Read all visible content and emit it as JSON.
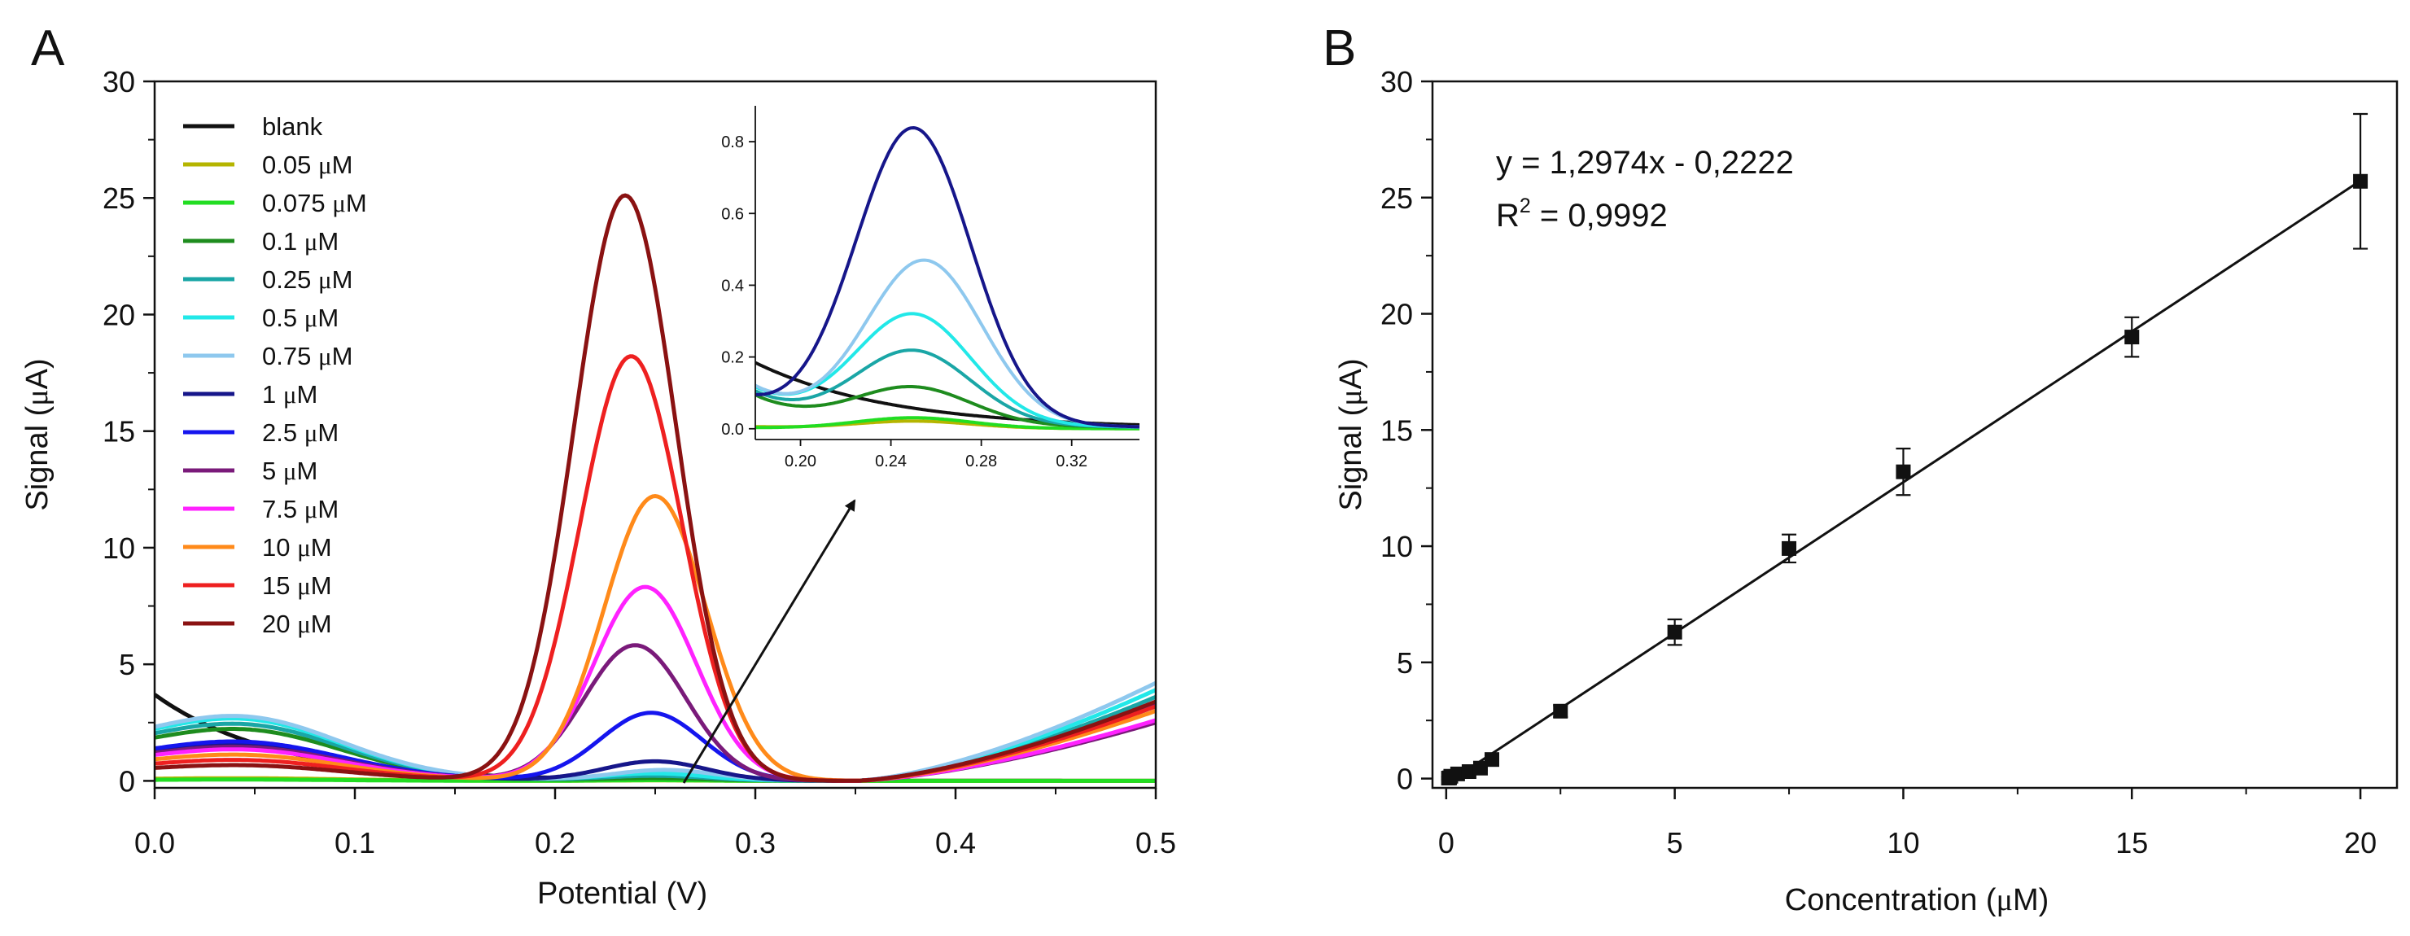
{
  "figure": {
    "panel_a_label": "A",
    "panel_b_label": "B"
  },
  "chart_data": [
    {
      "id": "A",
      "type": "line",
      "title": "",
      "xlabel": "Potential (V)",
      "ylabel": "Signal (μA)",
      "xlim": [
        0,
        0.5
      ],
      "ylim": [
        -0.3,
        30
      ],
      "xticks": [
        0.0,
        0.1,
        0.2,
        0.3,
        0.4,
        0.5
      ],
      "xtick_labels": [
        "0.0",
        "0.1",
        "0.2",
        "0.3",
        "0.4",
        "0.5"
      ],
      "yticks": [
        0,
        5,
        10,
        15,
        20,
        25,
        30
      ],
      "ytick_labels": [
        "0",
        "5",
        "10",
        "15",
        "20",
        "25",
        "30"
      ],
      "legend_position": "top-left",
      "series": [
        {
          "name": "blank",
          "unit": "",
          "color": "#111111",
          "peak_potential": 0.25,
          "peak_height": 0.0,
          "left_value": 3.7,
          "left_decay": 0.06,
          "right_rise": 0.0
        },
        {
          "name": "0.05",
          "unit": "μM",
          "color": "#b5b500",
          "peak_potential": 0.25,
          "peak_height": 0.02,
          "left_value": 0.1,
          "left_decay": 0.08,
          "right_rise": 0.0
        },
        {
          "name": "0.075",
          "unit": "μM",
          "color": "#22dd22",
          "peak_potential": 0.25,
          "peak_height": 0.03,
          "left_value": 0.05,
          "left_decay": 0.08,
          "right_rise": 0.0
        },
        {
          "name": "0.1",
          "unit": "μM",
          "color": "#1e8c1e",
          "peak_potential": 0.25,
          "peak_height": 0.1,
          "left_value": 2.0,
          "left_decay": 0.07,
          "right_rise": 3.3
        },
        {
          "name": "0.25",
          "unit": "μM",
          "color": "#1aa6a6",
          "peak_potential": 0.25,
          "peak_height": 0.2,
          "left_value": 2.2,
          "left_decay": 0.07,
          "right_rise": 3.6
        },
        {
          "name": "0.5",
          "unit": "μM",
          "color": "#22e8e8",
          "peak_potential": 0.25,
          "peak_height": 0.3,
          "left_value": 2.4,
          "left_decay": 0.07,
          "right_rise": 3.9
        },
        {
          "name": "0.75",
          "unit": "μM",
          "color": "#8ec8ee",
          "peak_potential": 0.255,
          "peak_height": 0.45,
          "left_value": 2.5,
          "left_decay": 0.07,
          "right_rise": 4.2
        },
        {
          "name": "1",
          "unit": "μM",
          "color": "#16168a",
          "peak_potential": 0.25,
          "peak_height": 0.82,
          "left_value": 1.4,
          "left_decay": 0.08,
          "right_rise": 3.2
        },
        {
          "name": "2.5",
          "unit": "μM",
          "color": "#1515ee",
          "peak_potential": 0.248,
          "peak_height": 2.9,
          "left_value": 1.5,
          "left_decay": 0.08,
          "right_rise": 3.3
        },
        {
          "name": "5",
          "unit": "μM",
          "color": "#7a1a7a",
          "peak_potential": 0.24,
          "peak_height": 5.8,
          "left_value": 1.3,
          "left_decay": 0.08,
          "right_rise": 2.5
        },
        {
          "name": "7.5",
          "unit": "μM",
          "color": "#ff22ff",
          "peak_potential": 0.245,
          "peak_height": 8.3,
          "left_value": 1.2,
          "left_decay": 0.08,
          "right_rise": 2.6
        },
        {
          "name": "10",
          "unit": "μM",
          "color": "#ff8a1a",
          "peak_potential": 0.25,
          "peak_height": 12.2,
          "left_value": 1.0,
          "left_decay": 0.08,
          "right_rise": 3.0
        },
        {
          "name": "15",
          "unit": "μM",
          "color": "#ee2020",
          "peak_potential": 0.238,
          "peak_height": 18.2,
          "left_value": 0.8,
          "left_decay": 0.08,
          "right_rise": 3.2
        },
        {
          "name": "20",
          "unit": "μM",
          "color": "#8a1212",
          "peak_potential": 0.235,
          "peak_height": 25.1,
          "left_value": 0.6,
          "left_decay": 0.08,
          "right_rise": 3.4
        }
      ],
      "inset": {
        "xlim": [
          0.18,
          0.35
        ],
        "ylim": [
          -0.03,
          0.9
        ],
        "xticks": [
          0.2,
          0.24,
          0.28,
          0.32
        ],
        "xtick_labels": [
          "0.20",
          "0.24",
          "0.28",
          "0.32"
        ],
        "yticks": [
          0.0,
          0.2,
          0.4,
          0.6,
          0.8
        ],
        "ytick_labels": [
          "0.0",
          "0.2",
          "0.4",
          "0.6",
          "0.8"
        ],
        "series_shown": [
          "blank",
          "0.05",
          "0.075",
          "0.1",
          "0.25",
          "0.5",
          "0.75",
          "1"
        ]
      }
    },
    {
      "id": "B",
      "type": "scatter",
      "title": "",
      "xlabel": "Concentration (μM)",
      "ylabel": "Signal (μA)",
      "xlim": [
        -0.3,
        20.8
      ],
      "ylim": [
        -0.4,
        30
      ],
      "xticks": [
        0,
        5,
        10,
        15,
        20
      ],
      "xtick_labels": [
        "0",
        "5",
        "10",
        "15",
        "20"
      ],
      "yticks": [
        0,
        5,
        10,
        15,
        20,
        25,
        30
      ],
      "ytick_labels": [
        "0",
        "5",
        "10",
        "15",
        "20",
        "25",
        "30"
      ],
      "points": [
        {
          "x": 0.05,
          "y": 0.02,
          "err": 0.05
        },
        {
          "x": 0.075,
          "y": 0.03,
          "err": 0.05
        },
        {
          "x": 0.1,
          "y": 0.1,
          "err": 0.05
        },
        {
          "x": 0.25,
          "y": 0.2,
          "err": 0.05
        },
        {
          "x": 0.5,
          "y": 0.3,
          "err": 0.08
        },
        {
          "x": 0.75,
          "y": 0.45,
          "err": 0.1
        },
        {
          "x": 1,
          "y": 0.82,
          "err": 0.15
        },
        {
          "x": 2.5,
          "y": 2.9,
          "err": 0.25
        },
        {
          "x": 5,
          "y": 6.3,
          "err": 0.55
        },
        {
          "x": 7.5,
          "y": 9.9,
          "err": 0.6
        },
        {
          "x": 10,
          "y": 13.2,
          "err": 1.0
        },
        {
          "x": 15,
          "y": 19.0,
          "err": 0.85
        },
        {
          "x": 20,
          "y": 25.7,
          "err": 2.9
        }
      ],
      "fit": {
        "slope": 1.2974,
        "intercept": -0.2222,
        "x_range": [
          0,
          20
        ]
      },
      "annotations": {
        "equation": "y = 1,2974x - 0,2222",
        "r2_prefix": "R",
        "r2_sup": "2",
        "r2_value": " = 0,9992"
      }
    }
  ]
}
